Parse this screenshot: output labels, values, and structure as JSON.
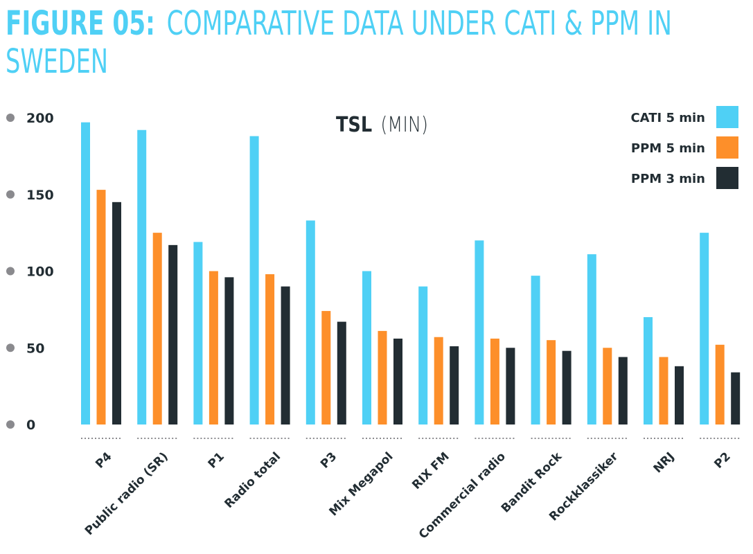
{
  "figure": {
    "label": "FIGURE 05:",
    "title_line1": "COMPARATIVE DATA UNDER CATI & PPM IN",
    "title_line2": "SWEDEN"
  },
  "chart_data": {
    "type": "bar",
    "title": "TSL",
    "title_unit": "(MIN)",
    "categories": [
      "P4",
      "Public radio (SR)",
      "P1",
      "Radio total",
      "P3",
      "Mix Megapol",
      "RIX FM",
      "Commercial radio",
      "Bandit Rock",
      "Rockklassiker",
      "NRJ",
      "P2"
    ],
    "series": [
      {
        "name": "CATI 5 min",
        "color": "#4fd0f5",
        "values": [
          197,
          192,
          119,
          188,
          133,
          100,
          90,
          120,
          97,
          111,
          70,
          125
        ]
      },
      {
        "name": "PPM 5 min",
        "color": "#fd8f2a",
        "values": [
          153,
          125,
          100,
          98,
          74,
          61,
          57,
          56,
          55,
          50,
          44,
          52
        ]
      },
      {
        "name": "PPM 3 min",
        "color": "#222d33",
        "values": [
          145,
          117,
          96,
          90,
          67,
          56,
          51,
          50,
          48,
          44,
          38,
          34
        ]
      }
    ],
    "yticks": [
      "0",
      "50",
      "100",
      "150",
      "200"
    ],
    "ylim": [
      0,
      200
    ],
    "grid": false,
    "legend": "top-right"
  }
}
